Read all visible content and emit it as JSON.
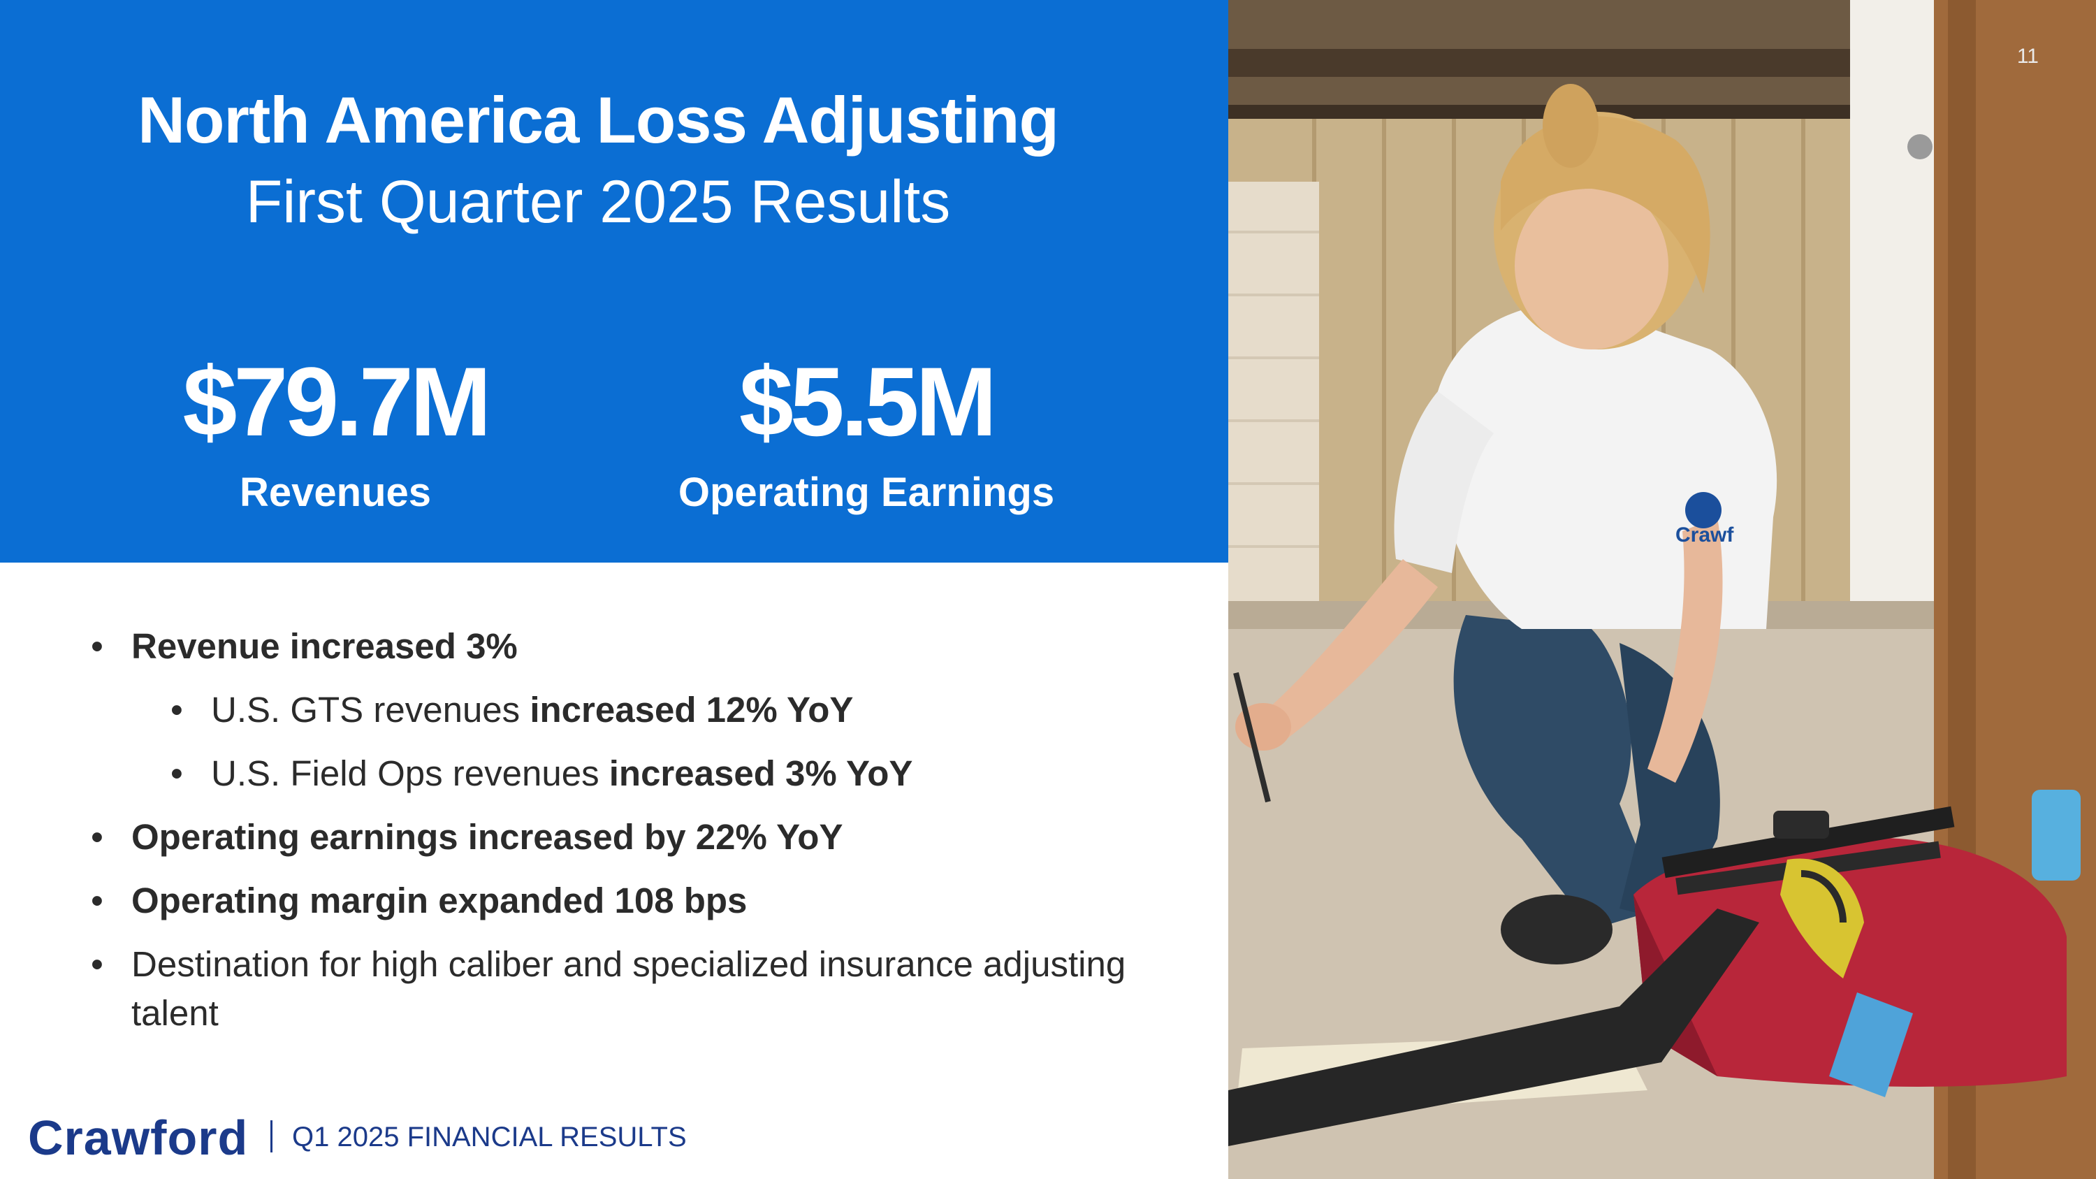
{
  "header": {
    "title": "North America Loss Adjusting",
    "subtitle": "First Quarter 2025 Results"
  },
  "metrics": [
    {
      "value": "$79.7M",
      "label": "Revenues"
    },
    {
      "value": "$5.5M",
      "label": "Operating Earnings"
    }
  ],
  "bullets": [
    {
      "bold": "Revenue increased 3%",
      "normal": ""
    },
    {
      "normal": "U.S. GTS revenues ",
      "bold": "increased 12% YoY"
    },
    {
      "normal": "U.S. Field Ops revenues ",
      "bold": "increased 3% YoY"
    },
    {
      "bold": "Operating earnings increased by 22% YoY",
      "normal": ""
    },
    {
      "bold": "Operating margin expanded 108 bps",
      "normal": ""
    },
    {
      "normal": "Destination for high caliber and specialized insurance adjusting talent",
      "bold": ""
    }
  ],
  "bullet_char": "•",
  "footer": {
    "logo": "Crawford",
    "text": "Q1 2025 FINANCIAL RESULTS"
  },
  "page_number": "11",
  "photo": {
    "shirt_logo": "Crawf"
  },
  "colors": {
    "panel_blue": "#0b6ed3",
    "brand_navy": "#1b3a8a"
  }
}
